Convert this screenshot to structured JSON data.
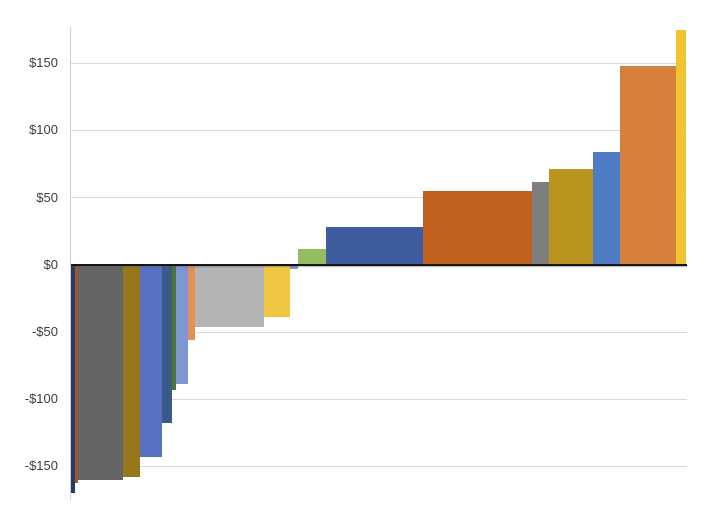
{
  "chart_data": {
    "type": "bar",
    "variant": "variable-width-sorted-contribution",
    "title": "",
    "xlabel": "",
    "ylabel": "",
    "ylim": [
      -175,
      177
    ],
    "grid": true,
    "legend": false,
    "x_axis_labels": [],
    "yticks": [
      {
        "value": 150,
        "label": "$150"
      },
      {
        "value": 100,
        "label": "$100"
      },
      {
        "value": 50,
        "label": "$50"
      },
      {
        "value": 0,
        "label": "$0"
      },
      {
        "value": -50,
        "label": "-$50"
      },
      {
        "value": -100,
        "label": "-$100"
      },
      {
        "value": -150,
        "label": "-$150"
      }
    ],
    "bars": [
      {
        "value": -170,
        "rel_width": 5.0,
        "color": "#283a66"
      },
      {
        "value": -162,
        "rel_width": 3.5,
        "color": "#9d572e"
      },
      {
        "value": -160,
        "rel_width": 45.0,
        "color": "#656565"
      },
      {
        "value": -158,
        "rel_width": 17.0,
        "color": "#97771b"
      },
      {
        "value": -143,
        "rel_width": 21.5,
        "color": "#5571c0"
      },
      {
        "value": -118,
        "rel_width": 10.0,
        "color": "#3a5a8c"
      },
      {
        "value": -93,
        "rel_width": 4.0,
        "color": "#4e7536"
      },
      {
        "value": -89,
        "rel_width": 12.5,
        "color": "#7e97d4"
      },
      {
        "value": -56,
        "rel_width": 6.5,
        "color": "#de9257"
      },
      {
        "value": -46,
        "rel_width": 69.5,
        "color": "#b4b4b4"
      },
      {
        "value": -39,
        "rel_width": 26.0,
        "color": "#f0c743"
      },
      {
        "value": -3,
        "rel_width": 8.0,
        "color": "#7f9bd3"
      },
      {
        "value": 12,
        "rel_width": 28.0,
        "color": "#94bd61"
      },
      {
        "value": 28,
        "rel_width": 97.0,
        "color": "#3e5ca0"
      },
      {
        "value": 55,
        "rel_width": 108.5,
        "color": "#c0611f"
      },
      {
        "value": 62,
        "rel_width": 17.0,
        "color": "#7f7f7f"
      },
      {
        "value": 71,
        "rel_width": 44.0,
        "color": "#b9941f"
      },
      {
        "value": 84,
        "rel_width": 27.0,
        "color": "#4e7dc6"
      },
      {
        "value": 148,
        "rel_width": 56.5,
        "color": "#d5803d"
      },
      {
        "value": 175,
        "rel_width": 9.5,
        "color": "#f2c330"
      }
    ]
  },
  "axis_style": {
    "gridline_color": "#d9d9d9",
    "zero_line_color": "#161616",
    "axis_line_color": "#d2d2d2",
    "tick_label_color": "#3d3d3d",
    "background": "#ffffff"
  }
}
